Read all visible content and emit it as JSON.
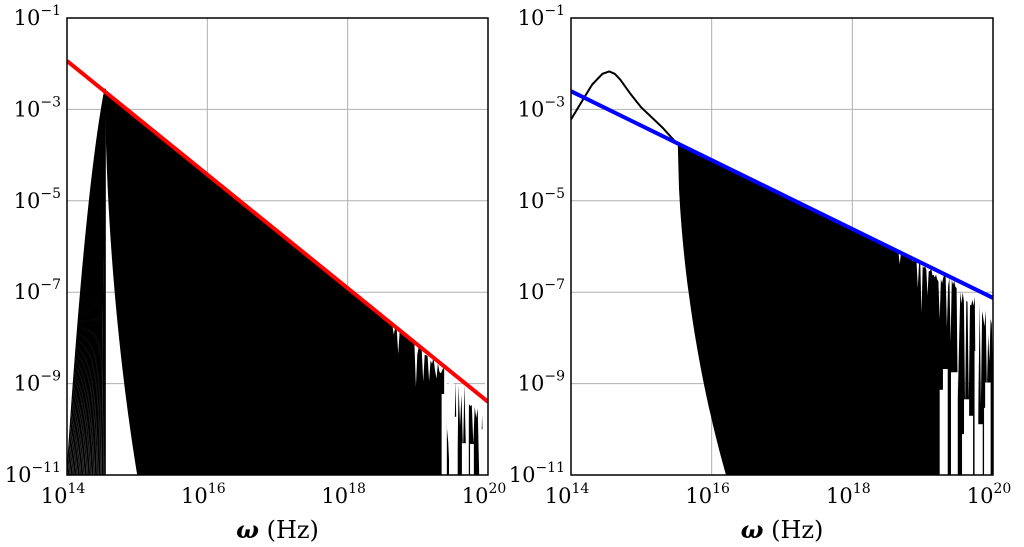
{
  "chart_data": [
    {
      "type": "line",
      "x_scale": "log",
      "y_scale": "log",
      "xlim": [
        100000000000000.0,
        1e+20
      ],
      "ylim": [
        1e-11,
        0.1
      ],
      "grid": true,
      "xlabel": {
        "symbol": "ω",
        "unit": " (Hz)"
      },
      "x_ticks": [
        {
          "base": "10",
          "exp": "14",
          "value": 100000000000000.0
        },
        {
          "base": "10",
          "exp": "16",
          "value": 1e+16
        },
        {
          "base": "10",
          "exp": "18",
          "value": 1e+18
        },
        {
          "base": "10",
          "exp": "20",
          "value": 1e+20
        }
      ],
      "y_ticks": [
        {
          "base": "10",
          "exp": "−1",
          "value": 0.1
        },
        {
          "base": "10",
          "exp": "−3",
          "value": 0.001
        },
        {
          "base": "10",
          "exp": "−5",
          "value": 1e-05
        },
        {
          "base": "10",
          "exp": "−7",
          "value": 1e-07
        },
        {
          "base": "10",
          "exp": "−9",
          "value": 1e-09
        },
        {
          "base": "10",
          "exp": "−11",
          "value": 1e-11
        }
      ],
      "series": [
        {
          "style": "envelope",
          "color": "#ff0000",
          "x": [
            100000000000000.0,
            1e+20
          ],
          "y": [
            0.0115,
            4e-10
          ]
        },
        {
          "style": "dense-spectrum",
          "color": "#000000",
          "peak_x": 350000000000000.0,
          "peak_y": 0.0028,
          "ridge_x": [
            350000000000000.0,
            1e+20
          ],
          "ridge_y": [
            0.0023,
            4e-10
          ],
          "cutoff_x": [
            350000000000000.0,
            1000000000000000.0
          ]
        }
      ]
    },
    {
      "type": "line",
      "x_scale": "log",
      "y_scale": "log",
      "xlim": [
        100000000000000.0,
        1e+20
      ],
      "ylim": [
        1e-11,
        0.1
      ],
      "grid": true,
      "xlabel": {
        "symbol": "ω",
        "unit": " (Hz)"
      },
      "x_ticks": [
        {
          "base": "10",
          "exp": "14",
          "value": 100000000000000.0
        },
        {
          "base": "10",
          "exp": "16",
          "value": 1e+16
        },
        {
          "base": "10",
          "exp": "18",
          "value": 1e+18
        },
        {
          "base": "10",
          "exp": "20",
          "value": 1e+20
        }
      ],
      "y_ticks": [
        {
          "base": "10",
          "exp": "−1",
          "value": 0.1
        },
        {
          "base": "10",
          "exp": "−3",
          "value": 0.001
        },
        {
          "base": "10",
          "exp": "−5",
          "value": 1e-05
        },
        {
          "base": "10",
          "exp": "−7",
          "value": 1e-07
        },
        {
          "base": "10",
          "exp": "−9",
          "value": 1e-09
        },
        {
          "base": "10",
          "exp": "−11",
          "value": 1e-11
        }
      ],
      "series": [
        {
          "style": "envelope",
          "color": "#0000ff",
          "x": [
            100000000000000.0,
            1e+20
          ],
          "y": [
            0.0025,
            7.5e-08
          ]
        },
        {
          "style": "peak-curve",
          "color": "#000000",
          "x": [
            100000000000000.0,
            150000000000000.0,
            200000000000000.0,
            280000000000000.0,
            350000000000000.0,
            420000000000000.0,
            500000000000000.0,
            700000000000000.0,
            1000000000000000.0,
            2000000000000000.0,
            3300000000000000.0
          ],
          "y": [
            0.0006,
            0.0017,
            0.0035,
            0.006,
            0.0068,
            0.006,
            0.0045,
            0.0022,
            0.0011,
            0.0004,
            0.00017
          ]
        },
        {
          "style": "dense-spectrum",
          "color": "#000000",
          "ridge_x": [
            3300000000000000.0,
            1e+20
          ],
          "ridge_y": [
            0.00017,
            7.5e-08
          ],
          "cutoff_x": [
            3300000000000000.0,
            1.6e+16
          ]
        }
      ]
    }
  ]
}
